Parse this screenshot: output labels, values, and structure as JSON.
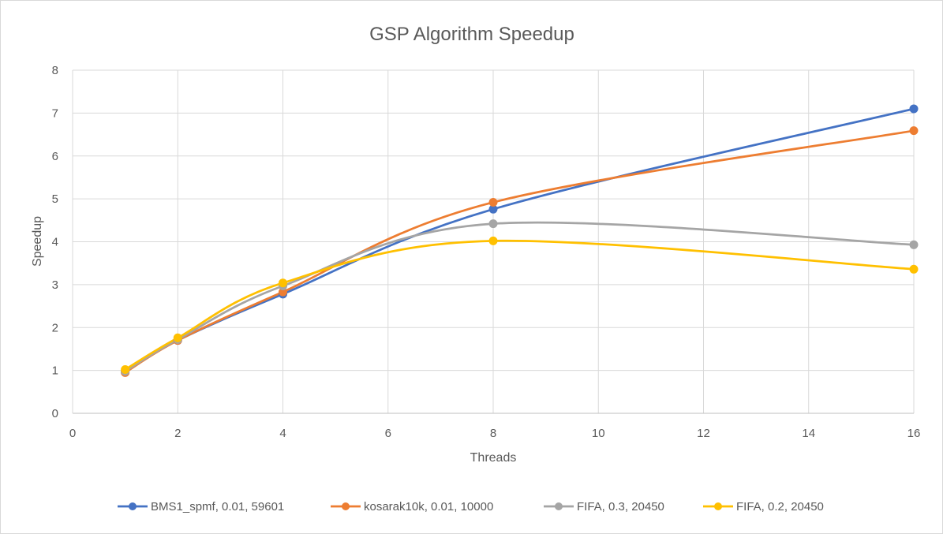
{
  "chart_data": {
    "type": "line",
    "title": "GSP Algorithm Speedup",
    "xlabel": "Threads",
    "ylabel": "Speedup",
    "xlim": [
      0,
      16
    ],
    "ylim": [
      0,
      8
    ],
    "x_ticks": [
      "0",
      "2",
      "4",
      "6",
      "8",
      "10",
      "12",
      "14",
      "16"
    ],
    "y_ticks": [
      "0",
      "1",
      "2",
      "3",
      "4",
      "5",
      "6",
      "7",
      "8"
    ],
    "grid": true,
    "smooth_lines": true,
    "legend_position": "bottom",
    "x": [
      1,
      2,
      4,
      8,
      16
    ],
    "series": [
      {
        "name": "BMS1_spmf, 0.01, 59601",
        "color": "#4472c4",
        "values": [
          0.97,
          1.7,
          2.78,
          4.76,
          7.1
        ]
      },
      {
        "name": "kosarak10k, 0.01, 10000",
        "color": "#ed7d31",
        "values": [
          0.95,
          1.7,
          2.83,
          4.92,
          6.59
        ]
      },
      {
        "name": "FIFA, 0.3, 20450",
        "color": "#a5a5a5",
        "values": [
          0.98,
          1.72,
          2.97,
          4.42,
          3.93
        ]
      },
      {
        "name": "FIFA, 0.2, 20450",
        "color": "#ffc000",
        "values": [
          1.02,
          1.76,
          3.04,
          4.02,
          3.36
        ]
      }
    ]
  }
}
